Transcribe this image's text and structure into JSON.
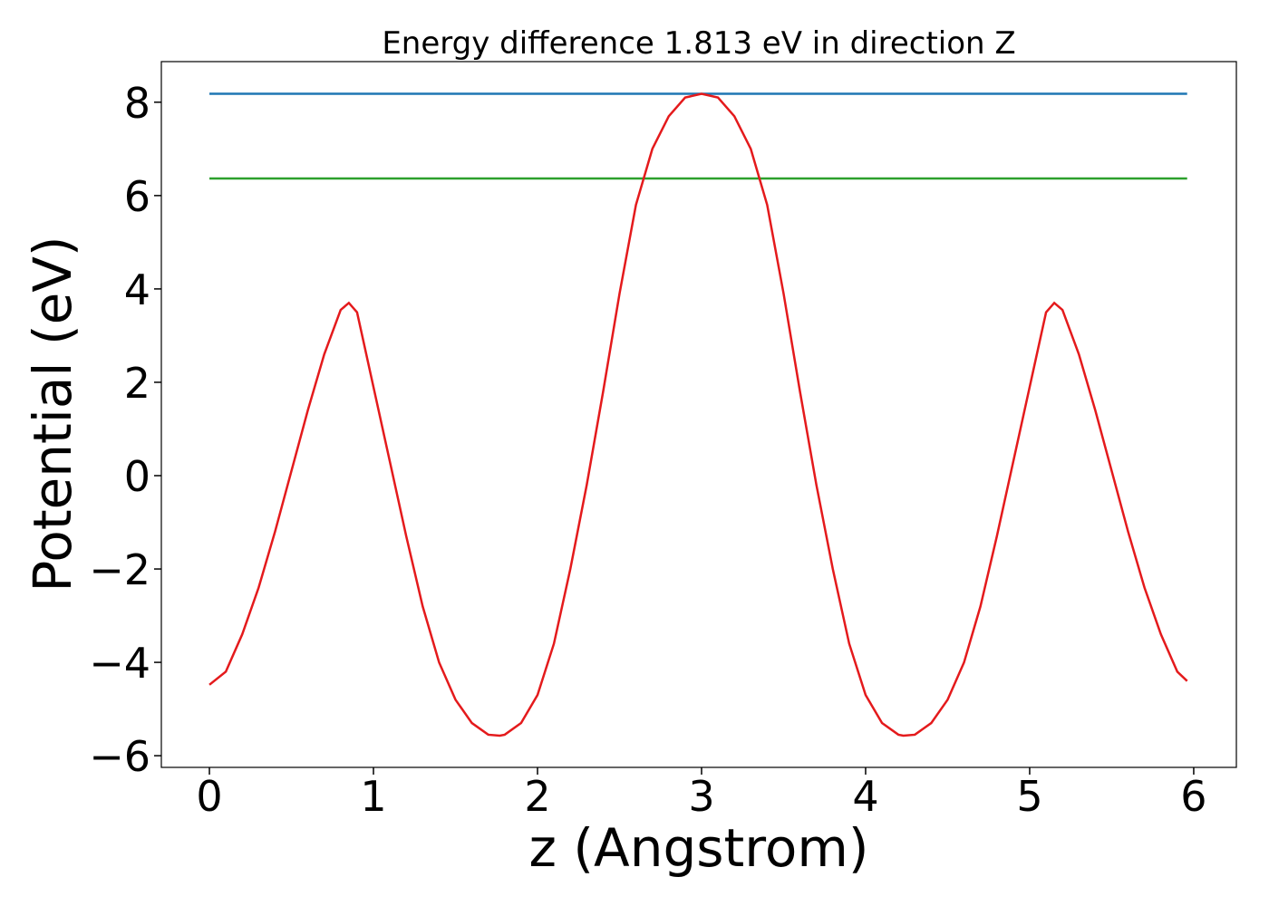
{
  "chart_data": {
    "type": "line",
    "title": "Energy difference 1.813 eV in direction Z",
    "xlabel": "z (Angstrom)",
    "ylabel": "Potential (eV)",
    "xlim": [
      -0.293,
      6.26
    ],
    "ylim": [
      -6.25,
      8.87
    ],
    "xticks": [
      0,
      1,
      2,
      3,
      4,
      5,
      6
    ],
    "yticks": [
      {
        "value": -6,
        "label": "−6"
      },
      {
        "value": -4,
        "label": "−4"
      },
      {
        "value": -2,
        "label": "−2"
      },
      0,
      2,
      4,
      6,
      8
    ],
    "grid": false,
    "series": [
      {
        "color": "#1f77b4",
        "x": [
          0,
          5.96
        ],
        "values": [
          8.18,
          8.18
        ]
      },
      {
        "color": "#2ca02c",
        "x": [
          0,
          5.96
        ],
        "values": [
          6.367,
          6.367
        ]
      },
      {
        "color": "#e41a1c",
        "x": [
          0,
          0.1,
          0.2,
          0.3,
          0.4,
          0.5,
          0.6,
          0.7,
          0.8,
          0.85,
          0.9,
          1.0,
          1.1,
          1.2,
          1.3,
          1.4,
          1.5,
          1.6,
          1.7,
          1.77,
          1.8,
          1.9,
          2.0,
          2.1,
          2.2,
          2.3,
          2.4,
          2.5,
          2.6,
          2.7,
          2.8,
          2.9,
          3.0,
          3.1,
          3.2,
          3.3,
          3.4,
          3.5,
          3.6,
          3.7,
          3.8,
          3.9,
          4.0,
          4.1,
          4.2,
          4.23,
          4.3,
          4.4,
          4.5,
          4.6,
          4.7,
          4.8,
          4.9,
          5.0,
          5.1,
          5.15,
          5.2,
          5.3,
          5.4,
          5.5,
          5.6,
          5.7,
          5.8,
          5.9,
          5.96
        ],
        "values": [
          -4.48,
          -4.2,
          -3.4,
          -2.4,
          -1.2,
          0.1,
          1.4,
          2.6,
          3.55,
          3.7,
          3.5,
          1.9,
          0.3,
          -1.3,
          -2.8,
          -4.0,
          -4.8,
          -5.3,
          -5.55,
          -5.57,
          -5.55,
          -5.3,
          -4.7,
          -3.6,
          -2.0,
          -0.2,
          1.8,
          3.9,
          5.8,
          7.0,
          7.7,
          8.1,
          8.18,
          8.1,
          7.7,
          7.0,
          5.8,
          3.9,
          1.8,
          -0.2,
          -2.0,
          -3.6,
          -4.7,
          -5.3,
          -5.55,
          -5.57,
          -5.55,
          -5.3,
          -4.8,
          -4.0,
          -2.8,
          -1.3,
          0.3,
          1.9,
          3.5,
          3.7,
          3.55,
          2.6,
          1.4,
          0.1,
          -1.2,
          -2.4,
          -3.4,
          -4.2,
          -4.4
        ]
      }
    ]
  }
}
